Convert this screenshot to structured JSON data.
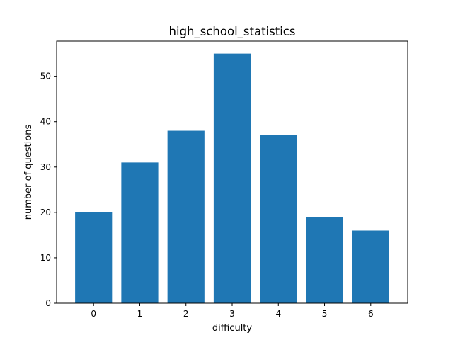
{
  "chart_data": {
    "type": "bar",
    "title": "high_school_statistics",
    "xlabel": "difficulty",
    "ylabel": "number of questions",
    "categories": [
      "0",
      "1",
      "2",
      "3",
      "4",
      "5",
      "6"
    ],
    "values": [
      20,
      31,
      38,
      55,
      37,
      19,
      16
    ],
    "ylim": [
      0,
      57.75
    ],
    "yticks": [
      "0",
      "10",
      "20",
      "30",
      "40",
      "50"
    ],
    "grid": false,
    "legend": "none",
    "colors": {
      "bar": "#1f77b4",
      "axes": "#000000",
      "background": "#ffffff"
    }
  }
}
